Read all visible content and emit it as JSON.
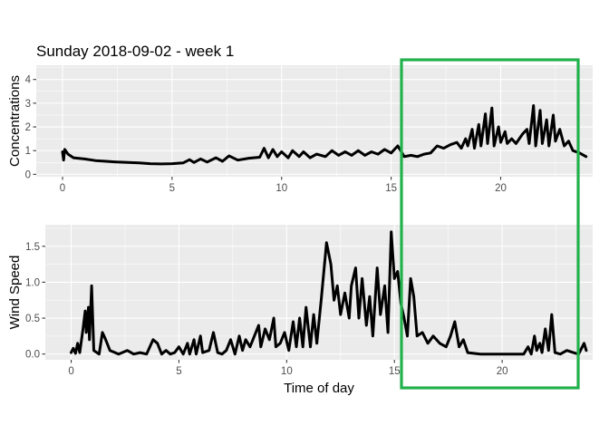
{
  "chart_data": [
    {
      "type": "line",
      "title": "Sunday 2018-09-02 - week 1",
      "xlabel": "",
      "ylabel": "Concentrations",
      "xlim": [
        -1.2,
        24.2
      ],
      "ylim": [
        -0.1,
        4.6
      ],
      "x_ticks": [
        0,
        5,
        10,
        15,
        20
      ],
      "y_ticks": [
        0,
        1,
        2,
        3,
        4
      ],
      "grid": true,
      "series": [
        {
          "values": [
            [
              0,
              0.95
            ],
            [
              0.05,
              0.6
            ],
            [
              0.1,
              1.05
            ],
            [
              0.25,
              0.85
            ],
            [
              0.5,
              0.7
            ],
            [
              1,
              0.65
            ],
            [
              1.5,
              0.58
            ],
            [
              2,
              0.55
            ],
            [
              2.5,
              0.52
            ],
            [
              3,
              0.5
            ],
            [
              3.5,
              0.48
            ],
            [
              4,
              0.45
            ],
            [
              4.5,
              0.44
            ],
            [
              5,
              0.45
            ],
            [
              5.5,
              0.48
            ],
            [
              5.8,
              0.62
            ],
            [
              6,
              0.5
            ],
            [
              6.3,
              0.65
            ],
            [
              6.6,
              0.52
            ],
            [
              7,
              0.7
            ],
            [
              7.3,
              0.55
            ],
            [
              7.6,
              0.78
            ],
            [
              8,
              0.6
            ],
            [
              8.5,
              0.68
            ],
            [
              9,
              0.72
            ],
            [
              9.2,
              1.1
            ],
            [
              9.4,
              0.7
            ],
            [
              9.6,
              1.05
            ],
            [
              9.8,
              0.75
            ],
            [
              10,
              0.95
            ],
            [
              10.3,
              0.7
            ],
            [
              10.5,
              1.0
            ],
            [
              10.8,
              0.75
            ],
            [
              11,
              0.95
            ],
            [
              11.3,
              0.7
            ],
            [
              11.6,
              0.85
            ],
            [
              12,
              0.75
            ],
            [
              12.3,
              1.0
            ],
            [
              12.6,
              0.8
            ],
            [
              12.9,
              0.95
            ],
            [
              13.2,
              0.8
            ],
            [
              13.5,
              1.0
            ],
            [
              13.8,
              0.8
            ],
            [
              14.1,
              0.95
            ],
            [
              14.4,
              0.85
            ],
            [
              14.7,
              1.05
            ],
            [
              15,
              0.9
            ],
            [
              15.3,
              1.2
            ],
            [
              15.6,
              0.75
            ],
            [
              15.9,
              0.8
            ],
            [
              16.2,
              0.75
            ],
            [
              16.5,
              0.85
            ],
            [
              16.8,
              0.9
            ],
            [
              17.1,
              1.2
            ],
            [
              17.4,
              1.1
            ],
            [
              17.7,
              1.25
            ],
            [
              18,
              1.35
            ],
            [
              18.2,
              1.1
            ],
            [
              18.4,
              1.5
            ],
            [
              18.5,
              1.2
            ],
            [
              18.7,
              1.9
            ],
            [
              18.8,
              1.1
            ],
            [
              19,
              2.1
            ],
            [
              19.1,
              1.2
            ],
            [
              19.3,
              2.55
            ],
            [
              19.4,
              1.3
            ],
            [
              19.6,
              2.8
            ],
            [
              19.7,
              1.2
            ],
            [
              19.9,
              2.0
            ],
            [
              20,
              1.35
            ],
            [
              20.2,
              1.8
            ],
            [
              20.3,
              1.3
            ],
            [
              20.5,
              1.5
            ],
            [
              20.7,
              1.3
            ],
            [
              21,
              1.7
            ],
            [
              21.2,
              1.9
            ],
            [
              21.3,
              1.3
            ],
            [
              21.5,
              2.9
            ],
            [
              21.6,
              1.2
            ],
            [
              21.8,
              2.7
            ],
            [
              21.9,
              1.3
            ],
            [
              22.1,
              2.3
            ],
            [
              22.2,
              1.2
            ],
            [
              22.4,
              2.5
            ],
            [
              22.5,
              1.4
            ],
            [
              22.7,
              1.9
            ],
            [
              22.9,
              1.2
            ],
            [
              23.1,
              1.4
            ],
            [
              23.3,
              1.0
            ],
            [
              23.6,
              0.9
            ],
            [
              23.9,
              0.75
            ]
          ]
        }
      ]
    },
    {
      "type": "line",
      "title": "",
      "xlabel": "Time of day",
      "ylabel": "Wind Speed",
      "xlim": [
        -1.2,
        24.2
      ],
      "ylim": [
        -0.08,
        1.8
      ],
      "x_ticks": [
        0,
        5,
        10,
        15,
        20
      ],
      "y_ticks": [
        0.0,
        0.5,
        1.0,
        1.5
      ],
      "y_tick_labels": [
        "0.0",
        "0.5",
        "1.0",
        "1.5"
      ],
      "grid": true,
      "series": [
        {
          "values": [
            [
              0,
              0.02
            ],
            [
              0.1,
              0.08
            ],
            [
              0.2,
              0.01
            ],
            [
              0.3,
              0.15
            ],
            [
              0.4,
              0.02
            ],
            [
              0.55,
              0.35
            ],
            [
              0.65,
              0.6
            ],
            [
              0.7,
              0.3
            ],
            [
              0.8,
              0.65
            ],
            [
              0.85,
              0.2
            ],
            [
              0.95,
              0.95
            ],
            [
              1.05,
              0.05
            ],
            [
              1.3,
              0.0
            ],
            [
              1.45,
              0.3
            ],
            [
              1.6,
              0.2
            ],
            [
              1.8,
              0.05
            ],
            [
              2.2,
              0.0
            ],
            [
              2.6,
              0.05
            ],
            [
              2.9,
              0.0
            ],
            [
              3.2,
              0.02
            ],
            [
              3.5,
              0.0
            ],
            [
              3.8,
              0.2
            ],
            [
              4.0,
              0.15
            ],
            [
              4.2,
              0.0
            ],
            [
              4.4,
              0.05
            ],
            [
              4.6,
              0.0
            ],
            [
              4.8,
              0.02
            ],
            [
              5.0,
              0.1
            ],
            [
              5.2,
              0.0
            ],
            [
              5.4,
              0.15
            ],
            [
              5.5,
              0.0
            ],
            [
              5.7,
              0.2
            ],
            [
              5.8,
              0.0
            ],
            [
              6.0,
              0.25
            ],
            [
              6.1,
              0.02
            ],
            [
              6.4,
              0.05
            ],
            [
              6.6,
              0.3
            ],
            [
              6.8,
              0.02
            ],
            [
              7.0,
              0.0
            ],
            [
              7.2,
              0.05
            ],
            [
              7.4,
              0.2
            ],
            [
              7.6,
              0.0
            ],
            [
              7.8,
              0.25
            ],
            [
              7.95,
              0.05
            ],
            [
              8.1,
              0.2
            ],
            [
              8.3,
              0.1
            ],
            [
              8.5,
              0.25
            ],
            [
              8.7,
              0.4
            ],
            [
              8.8,
              0.1
            ],
            [
              9.0,
              0.35
            ],
            [
              9.2,
              0.2
            ],
            [
              9.4,
              0.5
            ],
            [
              9.5,
              0.1
            ],
            [
              9.7,
              0.15
            ],
            [
              9.9,
              0.3
            ],
            [
              10.1,
              0.05
            ],
            [
              10.3,
              0.45
            ],
            [
              10.45,
              0.1
            ],
            [
              10.6,
              0.5
            ],
            [
              10.75,
              0.1
            ],
            [
              10.9,
              0.65
            ],
            [
              11.1,
              0.1
            ],
            [
              11.25,
              0.55
            ],
            [
              11.4,
              0.15
            ],
            [
              11.6,
              0.75
            ],
            [
              11.85,
              1.55
            ],
            [
              12.05,
              1.25
            ],
            [
              12.2,
              0.75
            ],
            [
              12.35,
              0.95
            ],
            [
              12.5,
              0.55
            ],
            [
              12.7,
              0.85
            ],
            [
              12.9,
              0.5
            ],
            [
              13.0,
              0.95
            ],
            [
              13.2,
              1.2
            ],
            [
              13.35,
              0.5
            ],
            [
              13.5,
              1.05
            ],
            [
              13.7,
              0.4
            ],
            [
              13.85,
              0.8
            ],
            [
              14.0,
              0.25
            ],
            [
              14.2,
              1.2
            ],
            [
              14.35,
              0.55
            ],
            [
              14.55,
              0.95
            ],
            [
              14.7,
              0.3
            ],
            [
              14.85,
              1.7
            ],
            [
              15.0,
              1.05
            ],
            [
              15.15,
              1.15
            ],
            [
              15.3,
              0.7
            ],
            [
              15.45,
              0.5
            ],
            [
              15.6,
              0.25
            ],
            [
              15.75,
              1.05
            ],
            [
              15.9,
              0.8
            ],
            [
              16.05,
              0.25
            ],
            [
              16.3,
              0.3
            ],
            [
              16.55,
              0.15
            ],
            [
              16.8,
              0.25
            ],
            [
              17.1,
              0.15
            ],
            [
              17.4,
              0.1
            ],
            [
              17.6,
              0.25
            ],
            [
              17.8,
              0.45
            ],
            [
              18.0,
              0.1
            ],
            [
              18.2,
              0.2
            ],
            [
              18.4,
              0.02
            ],
            [
              19,
              0.0
            ],
            [
              20,
              0.0
            ],
            [
              21,
              0.0
            ],
            [
              21.2,
              0.1
            ],
            [
              21.35,
              0.0
            ],
            [
              21.5,
              0.25
            ],
            [
              21.6,
              0.05
            ],
            [
              21.75,
              0.15
            ],
            [
              21.85,
              0.02
            ],
            [
              22.0,
              0.35
            ],
            [
              22.15,
              0.05
            ],
            [
              22.3,
              0.55
            ],
            [
              22.45,
              0.02
            ],
            [
              22.7,
              0.0
            ],
            [
              23.0,
              0.05
            ],
            [
              23.3,
              0.02
            ],
            [
              23.55,
              0.0
            ],
            [
              23.8,
              0.15
            ],
            [
              23.9,
              0.05
            ]
          ]
        }
      ]
    }
  ],
  "highlight": {
    "color": "#22b14c"
  }
}
